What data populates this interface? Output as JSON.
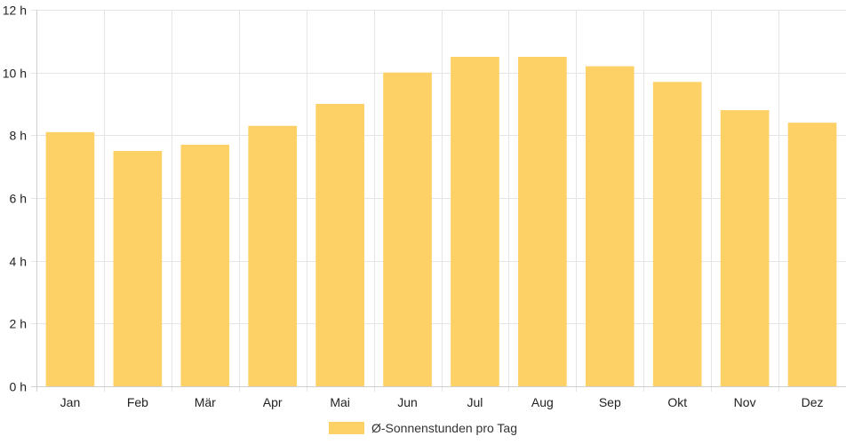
{
  "chart_data": {
    "type": "bar",
    "categories": [
      "Jan",
      "Feb",
      "Mär",
      "Apr",
      "Mai",
      "Jun",
      "Jul",
      "Aug",
      "Sep",
      "Okt",
      "Nov",
      "Dez"
    ],
    "series": [
      {
        "name": "Ø-Sonnenstunden pro Tag",
        "values": [
          8.1,
          7.5,
          7.7,
          8.3,
          9.0,
          10.0,
          10.5,
          10.5,
          10.2,
          9.7,
          8.8,
          8.4
        ],
        "color": "#fdd166"
      }
    ],
    "ylim": [
      0,
      12
    ],
    "yticks": [
      0,
      2,
      4,
      6,
      8,
      10,
      12
    ],
    "ytick_labels": [
      "0 h",
      "2 h",
      "4 h",
      "6 h",
      "8 h",
      "10 h",
      "12 h"
    ],
    "grid": true,
    "grid_color": "#e5e5e5",
    "axis_color": "#cfcfcf",
    "legend_position": "bottom-center",
    "title": "",
    "xlabel": "",
    "ylabel": ""
  }
}
